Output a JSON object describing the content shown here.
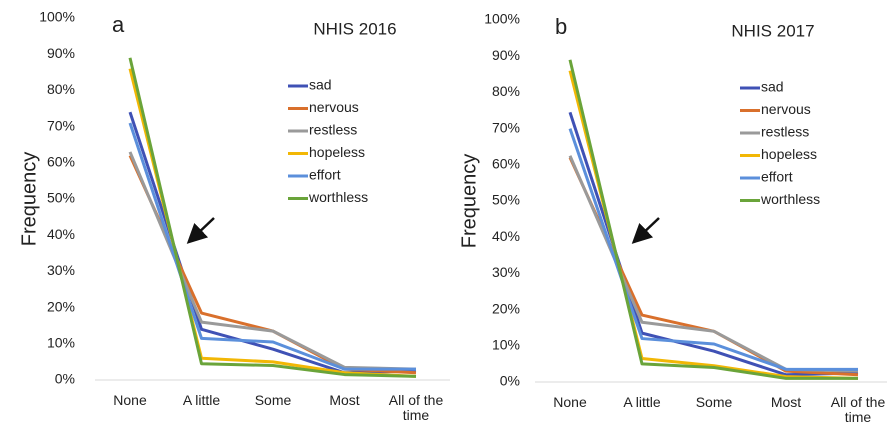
{
  "chart_data": [
    {
      "type": "line",
      "panel": "a",
      "title": "NHIS 2016",
      "y_label": "Frequency",
      "categories": [
        "None",
        "A little",
        "Some",
        "Most",
        "All of the time"
      ],
      "ylim": [
        0,
        100
      ],
      "yticks": [
        {
          "value": 0,
          "label": "0%"
        },
        {
          "value": 10,
          "label": "10%"
        },
        {
          "value": 20,
          "label": "20%"
        },
        {
          "value": 30,
          "label": "30%"
        },
        {
          "value": 40,
          "label": "40%"
        },
        {
          "value": 50,
          "label": "50%"
        },
        {
          "value": 60,
          "label": "60%"
        },
        {
          "value": 70,
          "label": "70%"
        },
        {
          "value": 80,
          "label": "80%"
        },
        {
          "value": 90,
          "label": "90%"
        },
        {
          "value": 100,
          "label": "100%"
        }
      ],
      "legend": "upper right",
      "series": [
        {
          "name": "sad",
          "color": "#3f51b5",
          "values": [
            74,
            14,
            8.5,
            2,
            2.5
          ]
        },
        {
          "name": "nervous",
          "color": "#d9702c",
          "values": [
            62,
            18.5,
            13.5,
            3,
            2
          ]
        },
        {
          "name": "restless",
          "color": "#9a9a9a",
          "values": [
            63,
            16,
            13.5,
            3.5,
            3
          ]
        },
        {
          "name": "hopeless",
          "color": "#f2b705",
          "values": [
            86,
            6,
            5,
            2,
            1
          ]
        },
        {
          "name": "effort",
          "color": "#5b8fdb",
          "values": [
            71,
            11.5,
            10.5,
            3,
            3
          ]
        },
        {
          "name": "worthless",
          "color": "#6aa43a",
          "values": [
            89,
            4.5,
            4,
            1.5,
            1
          ]
        }
      ]
    },
    {
      "type": "line",
      "panel": "b",
      "title": "NHIS 2017",
      "y_label": "Frequency",
      "categories": [
        "None",
        "A little",
        "Some",
        "Most",
        "All of the time"
      ],
      "ylim": [
        0,
        100
      ],
      "yticks": [
        {
          "value": 0,
          "label": "0%"
        },
        {
          "value": 10,
          "label": "10%"
        },
        {
          "value": 20,
          "label": "20%"
        },
        {
          "value": 30,
          "label": "30%"
        },
        {
          "value": 40,
          "label": "40%"
        },
        {
          "value": 50,
          "label": "50%"
        },
        {
          "value": 60,
          "label": "60%"
        },
        {
          "value": 70,
          "label": "70%"
        },
        {
          "value": 80,
          "label": "80%"
        },
        {
          "value": 90,
          "label": "90%"
        },
        {
          "value": 100,
          "label": "100%"
        }
      ],
      "legend": "upper right",
      "series": [
        {
          "name": "sad",
          "color": "#3f51b5",
          "values": [
            74.5,
            13.5,
            8.5,
            2,
            2.5
          ]
        },
        {
          "name": "nervous",
          "color": "#d9702c",
          "values": [
            62,
            18.5,
            14,
            3,
            2
          ]
        },
        {
          "name": "restless",
          "color": "#9a9a9a",
          "values": [
            62.5,
            16.5,
            14,
            3.5,
            3
          ]
        },
        {
          "name": "hopeless",
          "color": "#f2b705",
          "values": [
            86,
            6.5,
            4.5,
            1.5,
            1
          ]
        },
        {
          "name": "effort",
          "color": "#5b8fdb",
          "values": [
            70,
            12,
            10.5,
            3.5,
            3.5
          ]
        },
        {
          "name": "worthless",
          "color": "#6aa43a",
          "values": [
            89,
            5,
            4,
            1,
            1
          ]
        }
      ]
    }
  ]
}
